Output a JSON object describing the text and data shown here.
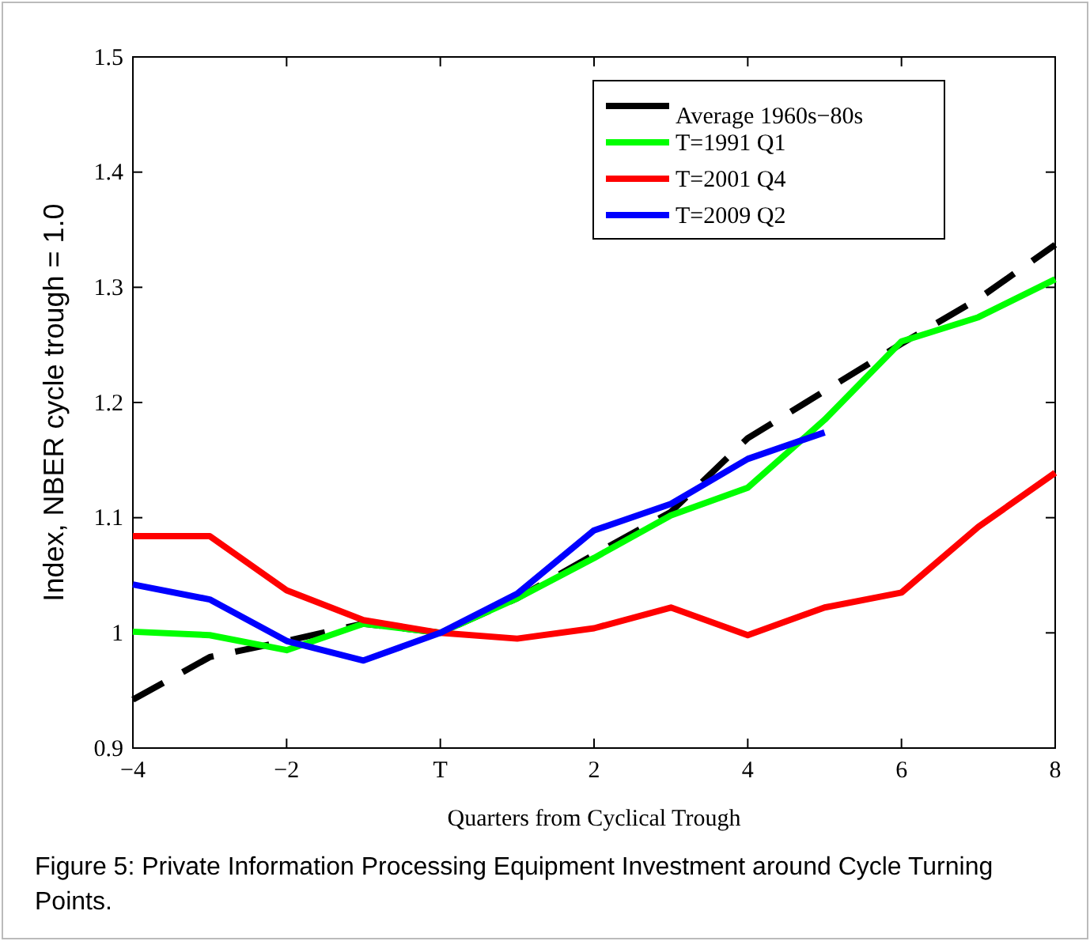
{
  "chart_data": {
    "type": "line",
    "xlabel": "Quarters from Cyclical Trough",
    "ylabel": "Index, NBER cycle trough = 1.0",
    "annotations": [
      "Figure 5: Private Information Processing Equipment Investment around Cycle Turning Points."
    ],
    "x": [
      -4,
      -3,
      -2,
      -1,
      0,
      1,
      2,
      3,
      4,
      5,
      6,
      7,
      8
    ],
    "xlim": [
      -4,
      8
    ],
    "xticks": [
      {
        "value": -4,
        "label": "−4"
      },
      {
        "value": -2,
        "label": "−2"
      },
      {
        "value": 0,
        "label": "T"
      },
      2,
      4,
      6,
      8
    ],
    "ylim": [
      0.9,
      1.5
    ],
    "yticks": [
      0.9,
      {
        "value": 1,
        "label": "1"
      },
      1.1,
      1.2,
      1.3,
      1.4,
      1.5
    ],
    "grid": false,
    "legend": "top right",
    "marker": "none",
    "series": [
      {
        "name": "Average 1960s−80s",
        "color": "#000000",
        "line_style": "dashed",
        "values": [
          0.942,
          0.979,
          0.993,
          1.008,
          1.0,
          1.03,
          1.068,
          1.105,
          1.169,
          1.21,
          1.251,
          1.29,
          1.337
        ]
      },
      {
        "name": "T=1991 Q1",
        "color": "#00ff00",
        "line_style": "solid",
        "values": [
          1.001,
          0.998,
          0.985,
          1.008,
          1.0,
          1.03,
          1.065,
          1.102,
          1.126,
          1.185,
          1.253,
          1.274,
          1.307
        ]
      },
      {
        "name": "T=2001 Q4",
        "color": "#ff0000",
        "line_style": "solid",
        "values": [
          1.084,
          1.084,
          1.037,
          1.011,
          1.0,
          0.995,
          1.004,
          1.022,
          0.998,
          1.022,
          1.035,
          1.092,
          1.139
        ]
      },
      {
        "name": "T=2009 Q2",
        "color": "#0000ff",
        "line_style": "solid",
        "values": [
          1.042,
          1.029,
          0.993,
          0.976,
          1.0,
          1.034,
          1.089,
          1.112,
          1.151,
          1.174,
          null,
          null,
          null
        ]
      }
    ]
  }
}
